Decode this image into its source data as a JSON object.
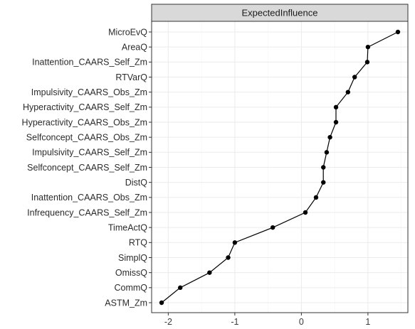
{
  "chart_data": {
    "type": "line",
    "facet_title": "ExpectedInfluence",
    "categories": [
      "MicroEvQ",
      "AreaQ",
      "Inattention_CAARS_Self_Zm",
      "RTVarQ",
      "Impulsivity_CAARS_Obs_Zm",
      "Hyperactivity_CAARS_Self_Zm",
      "Hyperactivity_CAARS_Obs_Zm",
      "Selfconcept_CAARS_Obs_Zm",
      "Impulsivity_CAARS_Self_Zm",
      "Selfconcept_CAARS_Self_Zm",
      "DistQ",
      "Inattention_CAARS_Obs_Zm",
      "Infrequency_CAARS_Self_Zm",
      "TimeActQ",
      "RTQ",
      "SimplQ",
      "OmissQ",
      "CommQ",
      "ASTM_Zm"
    ],
    "values": [
      1.45,
      1.0,
      0.99,
      0.8,
      0.7,
      0.52,
      0.52,
      0.43,
      0.38,
      0.33,
      0.33,
      0.22,
      0.06,
      -0.43,
      -1.0,
      -1.1,
      -1.38,
      -1.82,
      -2.1
    ],
    "xlim": [
      -2.25,
      1.6
    ],
    "xticks": [
      -2,
      -1,
      0,
      1
    ],
    "xtick_labels": [
      "-2",
      "-1",
      "0",
      "1"
    ],
    "grid": true,
    "theme": "bw",
    "colors": {
      "line": "#000000",
      "point": "#000000",
      "strip_fill": "#d9d9d9",
      "strip_border": "#333333",
      "grid_major": "#ebebeb",
      "grid_minor": "#f5f5f5",
      "panel_border": "#333333"
    }
  }
}
